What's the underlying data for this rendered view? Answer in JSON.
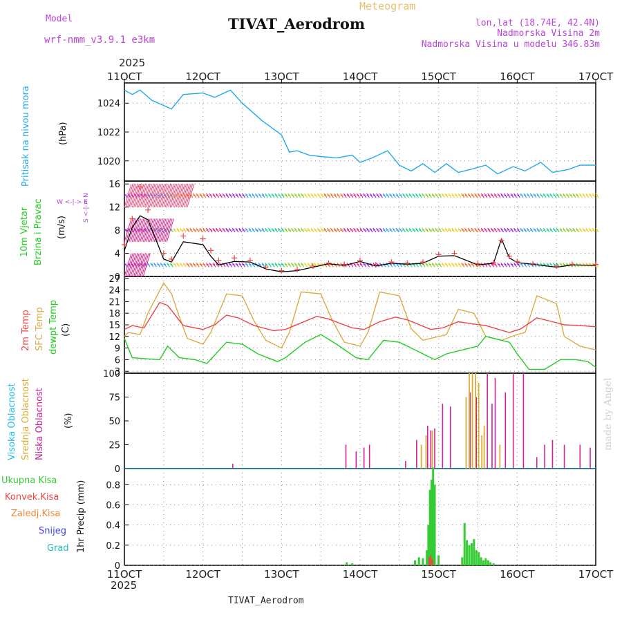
{
  "header": {
    "model_label": "Model",
    "model_name": "wrf-nmm_v3.9.1 e3km",
    "meteogram_label": "Meteogram",
    "station": "TIVAT_Aerodrom",
    "lonlat": "lon,lat (18.74E, 42.4N)",
    "elevation": "Nadmorska Visina 2m",
    "model_elevation": "Nadmorska Visina u modelu 346.83m",
    "footer_station": "TIVAT_Aerodrom",
    "watermark": "made by Angel"
  },
  "colors": {
    "pressure": "#22aaee",
    "wind_label": "#22cc22",
    "temp2m": "#ee4444",
    "sfc": "#ddaa44",
    "dew": "#22cc22",
    "cloud_high": "#22bbee",
    "cloud_mid": "#ddaa33",
    "cloud_low": "#cc2299",
    "rain_total": "#33cc33",
    "conv": "#ee4444",
    "frz": "#ee8833",
    "snow": "#4444ee",
    "grad": "#22bbbb",
    "purple": "#bb44dd",
    "tan": "#e8c070"
  },
  "chart_data": [
    {
      "panel": "x_axis",
      "year": "2025",
      "tick_labels": [
        "11OCT",
        "12OCT",
        "13OCT",
        "14OCT",
        "15OCT",
        "16OCT",
        "17OCT"
      ],
      "x_range_days": [
        11,
        17
      ]
    },
    {
      "panel": "pressure",
      "type": "line",
      "ylabel_primary": "Pritisak na nivou mora",
      "ylabel_unit": "(hPa)",
      "yticks": [
        "1020",
        "1022",
        "1024"
      ],
      "ylim": [
        1018.6,
        1025.4
      ],
      "series": [
        {
          "name": "pressure",
          "x": [
            11.0,
            11.1,
            11.2,
            11.35,
            11.6,
            11.75,
            12.0,
            12.15,
            12.35,
            12.5,
            12.75,
            13.0,
            13.1,
            13.2,
            13.35,
            13.5,
            13.7,
            13.9,
            14.0,
            14.15,
            14.35,
            14.5,
            14.65,
            14.8,
            14.95,
            15.1,
            15.25,
            15.4,
            15.6,
            15.75,
            15.95,
            16.1,
            16.3,
            16.45,
            16.65,
            16.8,
            17.0
          ],
          "values": [
            1024.9,
            1024.6,
            1024.9,
            1024.2,
            1023.6,
            1024.6,
            1024.7,
            1024.4,
            1024.9,
            1024.0,
            1022.8,
            1021.8,
            1020.6,
            1020.7,
            1020.4,
            1020.3,
            1020.2,
            1020.4,
            1019.9,
            1020.2,
            1020.7,
            1019.7,
            1019.3,
            1019.8,
            1019.2,
            1019.8,
            1019.2,
            1019.4,
            1019.7,
            1019.1,
            1019.6,
            1019.3,
            1019.9,
            1019.2,
            1019.4,
            1019.7,
            1019.7
          ]
        }
      ]
    },
    {
      "panel": "wind",
      "type": "line",
      "ylabel_primary": "10m Vjetar",
      "ylabel_secondary": "Brzina i Pravac",
      "ylabel_unit": "(m/s)",
      "compass_label": "W <-|-> E",
      "compass_vertical_label": "S <-|-> N",
      "yticks": [
        "0",
        "4",
        "8",
        "12",
        "16"
      ],
      "ylim": [
        0,
        16.5
      ],
      "series": [
        {
          "name": "speed",
          "x": [
            11.0,
            11.1,
            11.2,
            11.3,
            11.5,
            11.6,
            11.75,
            12.0,
            12.1,
            12.2,
            12.4,
            12.6,
            12.8,
            13.0,
            13.2,
            13.4,
            13.6,
            13.8,
            14.0,
            14.2,
            14.4,
            14.6,
            14.8,
            15.0,
            15.2,
            15.5,
            15.7,
            15.8,
            15.9,
            16.0,
            16.2,
            16.5,
            16.7,
            17.0
          ],
          "values": [
            4.5,
            8.5,
            10.5,
            9.8,
            3.0,
            2.5,
            6.0,
            5.5,
            3.5,
            2.0,
            2.6,
            2.5,
            1.3,
            0.8,
            1.0,
            1.6,
            2.2,
            1.9,
            2.6,
            1.8,
            2.3,
            2.1,
            2.3,
            3.5,
            3.6,
            2.0,
            2.3,
            6.5,
            3.2,
            2.4,
            2.1,
            1.6,
            2.0,
            1.9
          ]
        },
        {
          "name": "gust",
          "x": [
            11.0,
            11.1,
            11.2,
            11.3,
            11.5,
            11.6,
            11.75,
            12.0,
            12.1,
            12.2,
            12.4,
            12.6,
            12.8,
            13.0,
            13.2,
            13.4,
            13.6,
            13.8,
            14.0,
            14.2,
            14.4,
            14.6,
            14.8,
            15.0,
            15.2,
            15.5,
            15.7,
            15.8,
            15.9,
            16.0,
            16.2,
            16.5,
            16.7,
            17.0
          ],
          "values": [
            5.5,
            10.0,
            15.5,
            11.5,
            4.0,
            3.0,
            7.0,
            6.5,
            4.5,
            2.8,
            3.2,
            2.8,
            1.6,
            1.0,
            1.2,
            1.8,
            2.3,
            2.1,
            2.8,
            2.0,
            2.5,
            2.3,
            2.5,
            3.8,
            4.0,
            2.2,
            2.4,
            6.2,
            3.5,
            2.6,
            2.2,
            1.8,
            2.1,
            2.1
          ]
        }
      ]
    },
    {
      "panel": "temperature",
      "type": "line",
      "ylabel_primary": "2m Temp",
      "ylabel_secondary": "SFC Temp",
      "ylabel_tertiary": "dewpt Temp",
      "ylabel_unit": "(C)",
      "yticks": [
        "3",
        "6",
        "9",
        "12",
        "15",
        "18",
        "21",
        "24",
        "27"
      ],
      "ylim": [
        2.5,
        27.5
      ],
      "series": [
        {
          "name": "2m Temp",
          "x": [
            11.0,
            11.1,
            11.25,
            11.45,
            11.55,
            11.75,
            12.0,
            12.15,
            12.3,
            12.45,
            12.65,
            12.9,
            13.05,
            13.25,
            13.45,
            13.6,
            13.9,
            14.05,
            14.25,
            14.45,
            14.6,
            14.9,
            15.05,
            15.25,
            15.45,
            15.6,
            15.9,
            16.05,
            16.25,
            16.45,
            16.6,
            16.8,
            17.0
          ],
          "values": [
            13.8,
            14.8,
            14.2,
            20.8,
            20.0,
            14.8,
            13.8,
            15.0,
            17.5,
            16.8,
            14.8,
            13.5,
            13.8,
            15.5,
            17.2,
            16.5,
            14.2,
            13.8,
            15.8,
            17.0,
            16.3,
            13.8,
            14.2,
            15.8,
            15.2,
            14.8,
            13.0,
            14.0,
            16.8,
            15.8,
            15.0,
            14.8,
            14.5
          ]
        },
        {
          "name": "SFC Temp",
          "x": [
            11.0,
            11.05,
            11.2,
            11.3,
            11.5,
            11.6,
            11.7,
            11.8,
            12.0,
            12.1,
            12.3,
            12.5,
            12.65,
            12.8,
            13.0,
            13.1,
            13.25,
            13.5,
            13.65,
            13.8,
            14.0,
            14.1,
            14.25,
            14.5,
            14.65,
            14.8,
            15.0,
            15.1,
            15.25,
            15.45,
            15.6,
            15.8,
            16.0,
            16.1,
            16.25,
            16.5,
            16.6,
            16.8,
            17.0
          ],
          "values": [
            12.0,
            13.0,
            12.5,
            18.0,
            25.8,
            23.0,
            17.0,
            11.5,
            10.0,
            13.0,
            23.0,
            22.5,
            16.0,
            11.0,
            9.0,
            13.0,
            23.5,
            23.0,
            16.0,
            10.5,
            9.5,
            13.0,
            23.5,
            22.5,
            14.0,
            11.0,
            12.0,
            12.5,
            19.0,
            18.0,
            12.0,
            11.0,
            12.5,
            13.0,
            22.5,
            20.5,
            12.0,
            9.5,
            8.5
          ]
        },
        {
          "name": "dewpt Temp",
          "x": [
            11.0,
            11.1,
            11.3,
            11.45,
            11.55,
            11.7,
            11.9,
            12.05,
            12.3,
            12.5,
            12.7,
            12.95,
            13.05,
            13.3,
            13.5,
            13.7,
            13.95,
            14.1,
            14.3,
            14.5,
            14.7,
            14.95,
            15.1,
            15.3,
            15.5,
            15.6,
            15.7,
            15.9,
            16.0,
            16.15,
            16.35,
            16.55,
            16.75,
            16.9,
            17.0
          ],
          "values": [
            11.5,
            6.5,
            6.2,
            6.0,
            9.5,
            6.5,
            6.0,
            5.0,
            10.5,
            10.0,
            7.5,
            5.5,
            6.5,
            10.5,
            12.5,
            10.0,
            6.5,
            6.0,
            11.0,
            10.5,
            8.5,
            6.0,
            7.5,
            8.5,
            9.5,
            12.0,
            11.5,
            10.5,
            7.5,
            3.5,
            3.5,
            6.0,
            6.0,
            5.5,
            4.0
          ]
        }
      ]
    },
    {
      "panel": "clouds",
      "type": "bar",
      "ylabel_primary": "Visoka Oblacnost",
      "ylabel_secondary": "Srednja Oblacnost",
      "ylabel_tertiary": "Niska Oblacnost",
      "ylabel_unit": "(%)",
      "yticks": [
        "0",
        "25",
        "50",
        "75",
        "100"
      ],
      "ylim": [
        0,
        100
      ],
      "series": [
        {
          "name": "Niska Oblacnost",
          "x": [
            12.38,
            13.82,
            13.95,
            14.05,
            14.12,
            14.58,
            14.72,
            14.86,
            14.9,
            14.95,
            15.05,
            15.15,
            15.4,
            15.48,
            15.62,
            15.68,
            15.72,
            15.85,
            15.95,
            16.08,
            16.25,
            16.35,
            16.45,
            16.6,
            16.8,
            16.93
          ],
          "values": [
            5,
            25,
            18,
            22,
            25,
            8,
            30,
            45,
            40,
            42,
            68,
            65,
            80,
            75,
            100,
            68,
            95,
            80,
            100,
            100,
            12,
            25,
            30,
            25,
            25,
            22
          ]
        },
        {
          "name": "Srednja Oblacnost",
          "x": [
            14.78,
            14.84,
            14.92,
            15.35,
            15.39,
            15.43,
            15.47,
            15.51,
            15.55,
            15.58,
            15.78
          ],
          "values": [
            25,
            35,
            40,
            75,
            100,
            100,
            100,
            90,
            35,
            45,
            25
          ]
        }
      ]
    },
    {
      "panel": "precip",
      "type": "bar",
      "ylabel_primary": "1hr Precip (mm)",
      "yticks": [
        "0",
        "0.2",
        "0.4",
        "0.6",
        "0.8"
      ],
      "ylim": [
        0,
        0.96
      ],
      "legend": [
        "Ukupna Kisa",
        "Konvek.Kisa",
        "Zaledj.Kisa",
        "Snijeg",
        "Grad"
      ],
      "series": [
        {
          "name": "Ukupna Kisa",
          "x": [
            13.83,
            13.9,
            14.7,
            14.75,
            14.8,
            14.85,
            14.87,
            14.89,
            14.91,
            14.93,
            14.95,
            15.0,
            15.3,
            15.33,
            15.36,
            15.39,
            15.42,
            15.45,
            15.48,
            15.51,
            15.54,
            15.57,
            15.6,
            15.63,
            15.66,
            15.7
          ],
          "values": [
            0.03,
            0.02,
            0.05,
            0.08,
            0.07,
            0.15,
            0.4,
            0.75,
            0.85,
            0.97,
            0.8,
            0.1,
            0.08,
            0.42,
            0.25,
            0.2,
            0.22,
            0.26,
            0.15,
            0.13,
            0.08,
            0.05,
            0.07,
            0.05,
            0.03,
            0.02
          ]
        },
        {
          "name": "Konvek.Kisa",
          "x": [
            14.88,
            14.9,
            14.92
          ],
          "values": [
            0.08,
            0.1,
            0.06
          ]
        }
      ]
    }
  ]
}
